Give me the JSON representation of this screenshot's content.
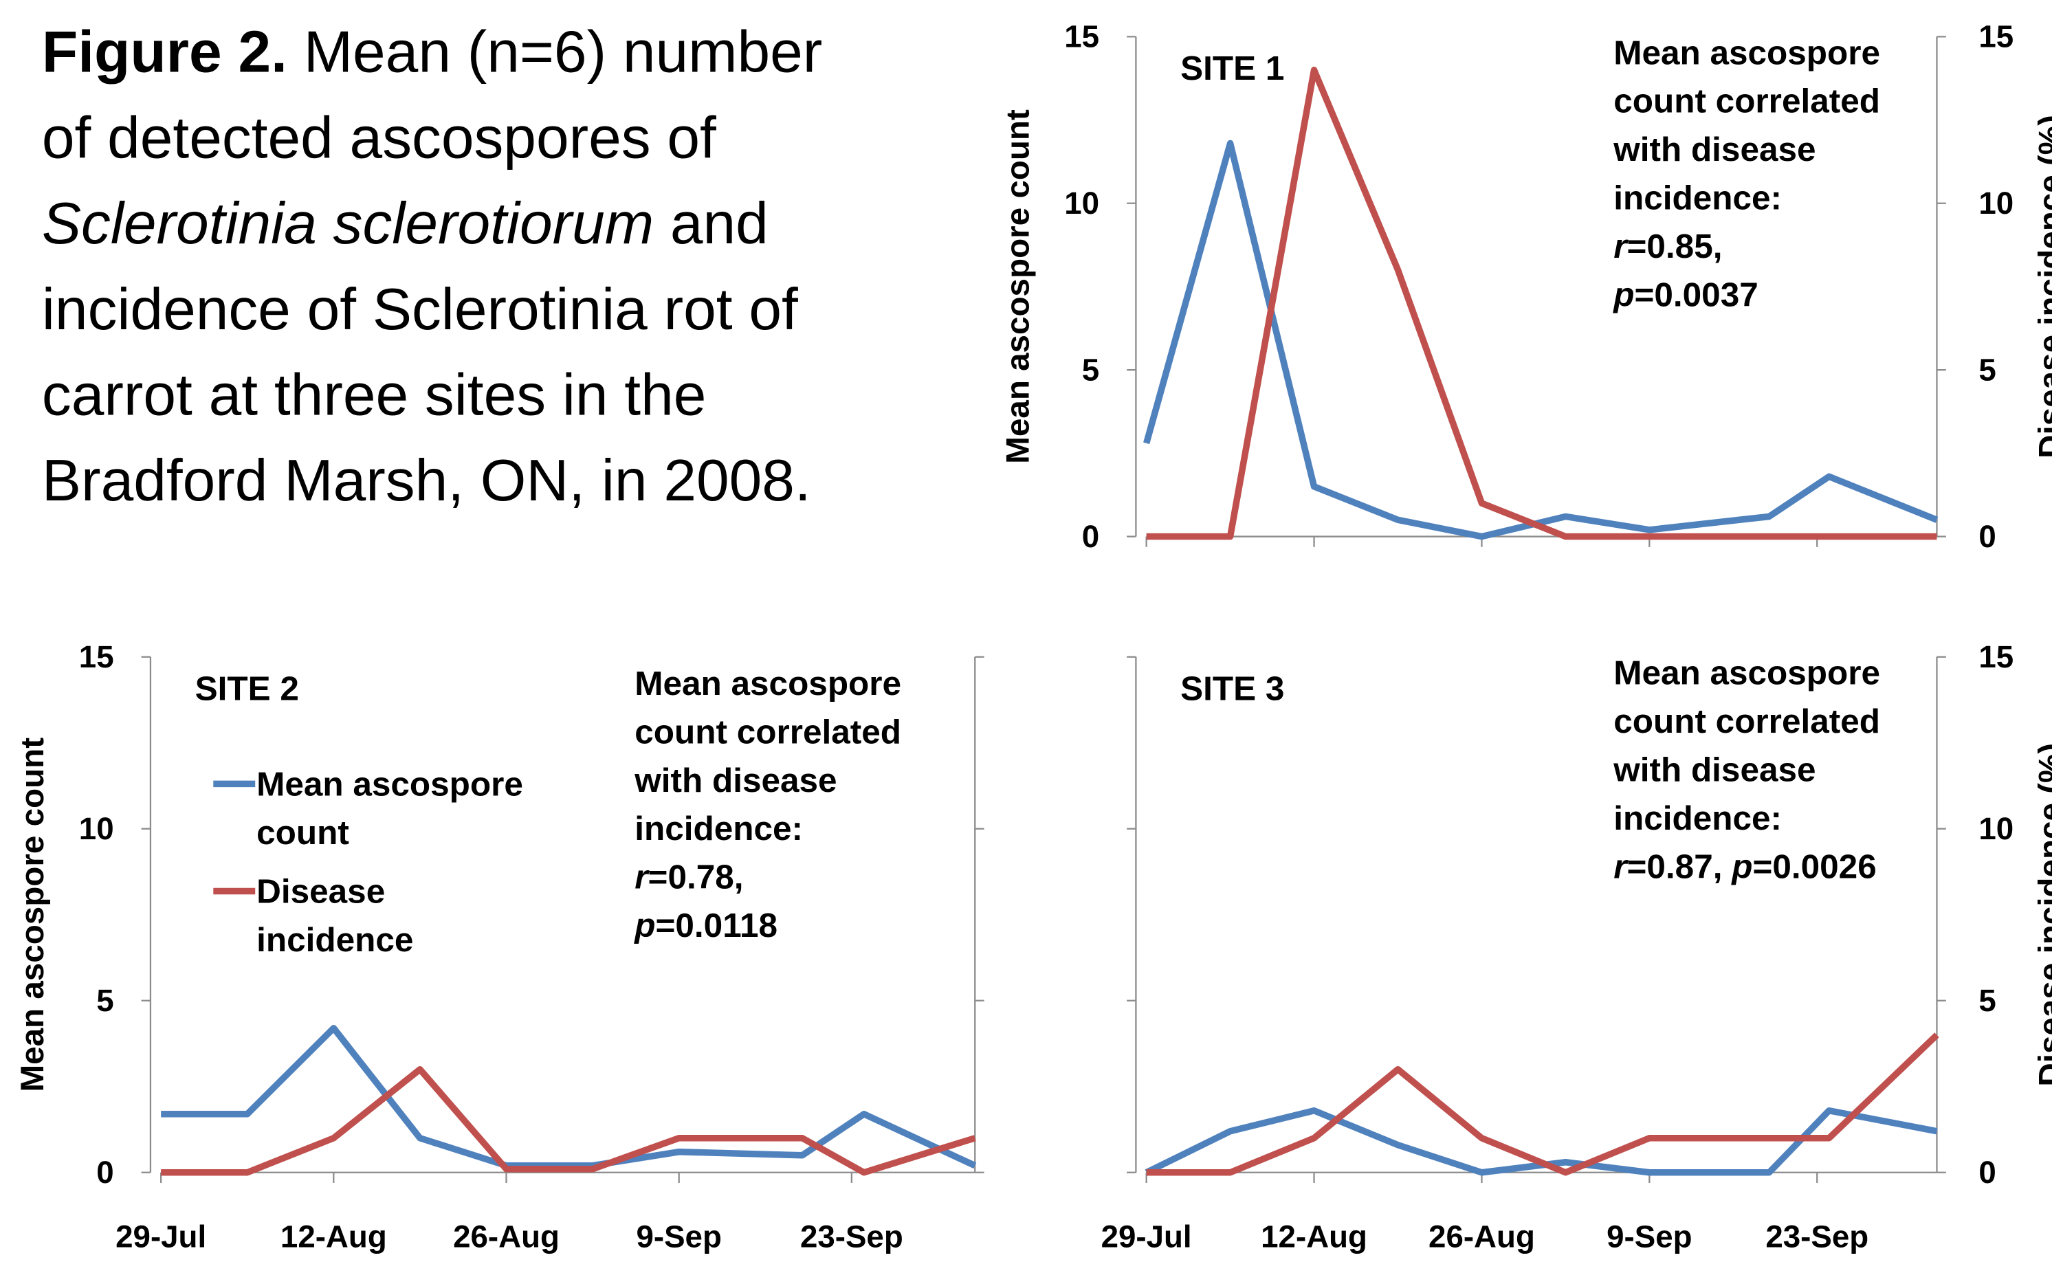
{
  "caption": {
    "lines": [
      [
        {
          "text": "Figure 2.",
          "style": "bold"
        },
        {
          "text": " Mean (n=6) number"
        }
      ],
      [
        {
          "text": "of detected ascospores of"
        }
      ],
      [
        {
          "text": "Sclerotinia sclerotiorum",
          "style": "italic"
        },
        {
          "text": " and"
        }
      ],
      [
        {
          "text": "incidence of Sclerotinia rot of"
        }
      ],
      [
        {
          "text": "carrot at three sites in the"
        }
      ],
      [
        {
          "text": "Bradford Marsh, ON, in 2008."
        }
      ]
    ]
  },
  "chart_data": [
    {
      "type": "line",
      "title": "SITE 1",
      "annotation": [
        "Mean ascospore",
        "count correlated",
        "with disease",
        "incidence:",
        "r=0.85,",
        "p=0.0037"
      ],
      "x": [
        "29-Jul",
        "5-Aug",
        "12-Aug",
        "19-Aug",
        "26-Aug",
        "2-Sep",
        "9-Sep",
        "19-Sep",
        "24-Sep",
        "3-Oct"
      ],
      "xlim": [
        "29-Jul",
        "3-Oct"
      ],
      "xticks": [
        "29-Jul",
        "12-Aug",
        "26-Aug",
        "9-Sep",
        "23-Sep"
      ],
      "show_xtick_labels": false,
      "ylabel": "Mean ascospore count",
      "ylim": [
        0,
        15
      ],
      "yticks": [
        0,
        5,
        10,
        15
      ],
      "show_ytick_labels": true,
      "y2label": "Disease incidence (%)",
      "y2lim": [
        0,
        15
      ],
      "y2ticks": [
        0,
        5,
        10,
        15
      ],
      "show_y2tick_labels": true,
      "series": [
        {
          "name": "Mean ascospore count",
          "color": "#4f81bd",
          "values": [
            2.8,
            11.8,
            1.5,
            0.5,
            0,
            0.6,
            0.2,
            0.6,
            1.8,
            0.5
          ]
        },
        {
          "name": "Disease incidence",
          "color": "#c0504d",
          "axis": "y2",
          "values": [
            0,
            0,
            14,
            8,
            1,
            0,
            0,
            0,
            0,
            0
          ]
        }
      ]
    },
    {
      "type": "line",
      "title": "SITE 2",
      "legend": "upper left",
      "annotation": [
        "Mean ascospore",
        "count correlated",
        "with disease",
        "incidence:",
        "r=0.78,",
        "p=0.0118"
      ],
      "x": [
        "29-Jul",
        "5-Aug",
        "12-Aug",
        "19-Aug",
        "26-Aug",
        "2-Sep",
        "9-Sep",
        "19-Sep",
        "24-Sep",
        "3-Oct"
      ],
      "xlim": [
        "29-Jul",
        "3-Oct"
      ],
      "xticks": [
        "29-Jul",
        "12-Aug",
        "26-Aug",
        "9-Sep",
        "23-Sep"
      ],
      "show_xtick_labels": true,
      "ylabel": "Mean ascospore count",
      "ylim": [
        0,
        15
      ],
      "yticks": [
        0,
        5,
        10,
        15
      ],
      "show_ytick_labels": true,
      "y2lim": [
        0,
        15
      ],
      "y2ticks": [
        0,
        5,
        10,
        15
      ],
      "show_y2tick_labels": false,
      "series": [
        {
          "name": "Mean ascospore count",
          "color": "#4f81bd",
          "values": [
            1.7,
            1.7,
            4.2,
            1,
            0.2,
            0.2,
            0.6,
            0.5,
            1.7,
            0.2
          ]
        },
        {
          "name": "Disease incidence",
          "color": "#c0504d",
          "axis": "y2",
          "values": [
            0,
            0,
            1,
            3,
            0.1,
            0.1,
            1,
            1,
            0,
            1
          ]
        }
      ]
    },
    {
      "type": "line",
      "title": "SITE 3",
      "annotation": [
        "Mean ascospore",
        "count correlated",
        "with disease",
        "incidence:",
        "r=0.87, p=0.0026"
      ],
      "x": [
        "29-Jul",
        "5-Aug",
        "12-Aug",
        "19-Aug",
        "26-Aug",
        "2-Sep",
        "9-Sep",
        "19-Sep",
        "24-Sep",
        "3-Oct"
      ],
      "xlim": [
        "29-Jul",
        "3-Oct"
      ],
      "xticks": [
        "29-Jul",
        "12-Aug",
        "26-Aug",
        "9-Sep",
        "23-Sep"
      ],
      "show_xtick_labels": true,
      "ylim": [
        0,
        15
      ],
      "yticks": [
        0,
        5,
        10,
        15
      ],
      "show_ytick_labels": false,
      "y2label": "Disease incidence (%)",
      "y2lim": [
        0,
        15
      ],
      "y2ticks": [
        0,
        5,
        10,
        15
      ],
      "show_y2tick_labels": true,
      "series": [
        {
          "name": "Mean ascospore count",
          "color": "#4f81bd",
          "values": [
            0,
            1.2,
            1.8,
            0.8,
            0,
            0.3,
            0,
            0,
            1.8,
            1.2
          ]
        },
        {
          "name": "Disease incidence",
          "color": "#c0504d",
          "axis": "y2",
          "values": [
            0,
            0,
            1,
            3,
            1,
            0,
            1,
            1,
            1,
            4
          ]
        }
      ]
    }
  ]
}
